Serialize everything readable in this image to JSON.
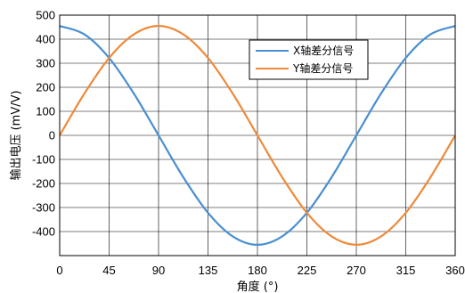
{
  "chart_data": {
    "type": "line",
    "title": "",
    "xlabel": "角度 (°)",
    "ylabel": "输出电压 (mV/V)",
    "xlim": [
      0,
      360
    ],
    "ylim": [
      -500,
      500
    ],
    "x_ticks": [
      0,
      45,
      90,
      135,
      180,
      225,
      270,
      315,
      360
    ],
    "y_ticks": [
      500,
      400,
      300,
      200,
      100,
      0,
      -100,
      -200,
      -300,
      -400
    ],
    "grid": true,
    "legend_position": "top-right",
    "series": [
      {
        "name": "X轴差分信号",
        "color": "#4a8fd0",
        "x": [
          0,
          22.5,
          45,
          67.5,
          90,
          112.5,
          135,
          157.5,
          180,
          202.5,
          225,
          247.5,
          270,
          292.5,
          315,
          337.5,
          360
        ],
        "y": [
          455,
          420,
          322,
          174,
          0,
          -174,
          -322,
          -420,
          -455,
          -420,
          -322,
          -174,
          0,
          174,
          322,
          420,
          455
        ]
      },
      {
        "name": "Y轴差分信号",
        "color": "#ee8a3a",
        "x": [
          0,
          22.5,
          45,
          67.5,
          90,
          112.5,
          135,
          157.5,
          180,
          202.5,
          225,
          247.5,
          270,
          292.5,
          315,
          337.5,
          360
        ],
        "y": [
          0,
          174,
          322,
          420,
          455,
          420,
          322,
          174,
          0,
          -174,
          -322,
          -420,
          -455,
          -420,
          -322,
          -174,
          0
        ]
      }
    ]
  }
}
